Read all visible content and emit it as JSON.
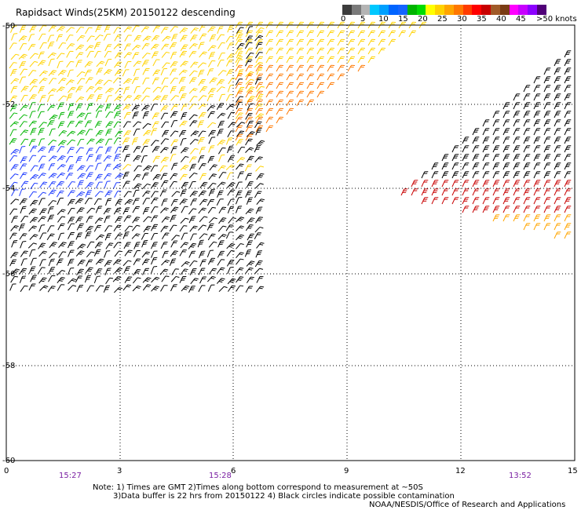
{
  "title": "Rapidsact Winds(25KM) 20150122 descending",
  "colorbar": {
    "colors": [
      "#3c3c3c",
      "#7a7a7a",
      "#b4b4b4",
      "#00c8ff",
      "#00a0ff",
      "#0064ff",
      "#1464ff",
      "#00b400",
      "#00dc00",
      "#ffff00",
      "#ffd200",
      "#ffa500",
      "#ff7800",
      "#ff3c00",
      "#ff0000",
      "#c80000",
      "#a05a28",
      "#7a3c14",
      "#ff00ff",
      "#c800ff",
      "#8c00ff",
      "#500078"
    ],
    "labels": [
      "0",
      "5",
      "10",
      "15",
      "20",
      "25",
      "30",
      "35",
      "40",
      "45",
      ">50 knots"
    ]
  },
  "axes": {
    "y_labels": [
      "-50",
      "-52",
      "-54",
      "-56",
      "-58",
      "-60"
    ],
    "x_labels": [
      "0",
      "3",
      "6",
      "9",
      "12",
      "15"
    ],
    "times": [
      "15:27",
      "15:28",
      "13:52"
    ],
    "time_color": "#7a1fa2"
  },
  "notes": {
    "line1": "Note: 1) Times are GMT 2)Times along bottom correspond to measurement at ~50S",
    "line2": "3)Data buffer is 22 hrs from 20150122 4) Black circles indicate possible contamination",
    "line3": "NOAA/NESDIS/Office of Research and Applications"
  }
}
